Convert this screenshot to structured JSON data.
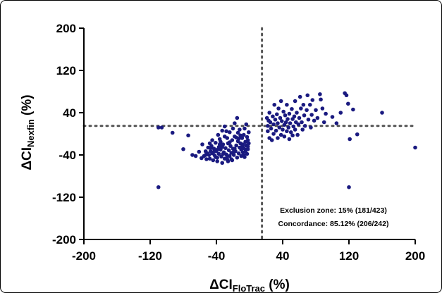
{
  "chart_data": {
    "type": "scatter",
    "xlabel": "ΔCI",
    "xlabel_sub": "FloTrac",
    "xlabel_unit": " (%)",
    "ylabel": "ΔCI",
    "ylabel_sub": "Nexfin",
    "ylabel_unit": " (%)",
    "xlim": [
      -200,
      200
    ],
    "ylim": [
      -200,
      200
    ],
    "xticks": [
      -200,
      -120,
      -40,
      40,
      120,
      200
    ],
    "yticks": [
      -200,
      -120,
      -40,
      40,
      120,
      200
    ],
    "reference_lines": {
      "x": 15,
      "y": 15,
      "style": "dotted"
    },
    "annotations": [
      "Exclusion zone: 15% (181/423)",
      "Concordance: 85.12% (206/242)"
    ],
    "point_color": "#1a1a80",
    "points": [
      [
        -110,
        12
      ],
      [
        -106,
        12
      ],
      [
        -110,
        -101
      ],
      [
        -93,
        2
      ],
      [
        -80,
        -29
      ],
      [
        -74,
        -3
      ],
      [
        -69,
        -40
      ],
      [
        -65,
        -42
      ],
      [
        -61,
        -34
      ],
      [
        -58,
        -46
      ],
      [
        -57,
        -20
      ],
      [
        -55,
        -42
      ],
      [
        -53,
        -33
      ],
      [
        -52,
        -48
      ],
      [
        -51,
        -37
      ],
      [
        -50,
        -26
      ],
      [
        -49,
        -40
      ],
      [
        -48,
        -47
      ],
      [
        -47,
        -33
      ],
      [
        -46,
        -23
      ],
      [
        -45,
        -37
      ],
      [
        -45,
        -12
      ],
      [
        -44,
        -50
      ],
      [
        -43,
        -28
      ],
      [
        -42,
        -41
      ],
      [
        -41,
        -17
      ],
      [
        -40,
        -33
      ],
      [
        -39,
        -45
      ],
      [
        -39,
        -52
      ],
      [
        -38,
        -2
      ],
      [
        -37,
        -25
      ],
      [
        -37,
        -38
      ],
      [
        -36,
        -10
      ],
      [
        -35,
        -30
      ],
      [
        -34,
        -43
      ],
      [
        -33,
        6
      ],
      [
        -33,
        -55
      ],
      [
        -32,
        -20
      ],
      [
        -31,
        -35
      ],
      [
        -30,
        -47
      ],
      [
        -30,
        14
      ],
      [
        -29,
        -27
      ],
      [
        -28,
        -39
      ],
      [
        -27,
        -8
      ],
      [
        -27,
        -48
      ],
      [
        -26,
        -18
      ],
      [
        -25,
        -31
      ],
      [
        -24,
        3
      ],
      [
        -24,
        -42
      ],
      [
        -23,
        -23
      ],
      [
        -22,
        -36
      ],
      [
        -21,
        -12
      ],
      [
        -21,
        -50
      ],
      [
        -20,
        -28
      ],
      [
        -19,
        -40
      ],
      [
        -18,
        20
      ],
      [
        -18,
        -5
      ],
      [
        -17,
        -33
      ],
      [
        -16,
        -22
      ],
      [
        -15,
        -45
      ],
      [
        -15,
        30
      ],
      [
        -14,
        -14
      ],
      [
        -13,
        -37
      ],
      [
        -12,
        8
      ],
      [
        -12,
        -26
      ],
      [
        -11,
        -18
      ],
      [
        -10,
        -42
      ],
      [
        -10,
        -30
      ],
      [
        -9,
        -8
      ],
      [
        -8,
        -35
      ],
      [
        -8,
        -20
      ],
      [
        -7,
        -2
      ],
      [
        -7,
        -27
      ],
      [
        -6,
        -44
      ],
      [
        -6,
        10
      ],
      [
        -5,
        -15
      ],
      [
        -5,
        -33
      ],
      [
        -4,
        -22
      ],
      [
        -4,
        18
      ],
      [
        -3,
        -38
      ],
      [
        -3,
        -6
      ],
      [
        -2,
        -12
      ],
      [
        -2,
        -29
      ],
      [
        -1,
        3
      ],
      [
        -1,
        -18
      ],
      [
        -36,
        -20
      ],
      [
        -42,
        -30
      ],
      [
        -48,
        -18
      ],
      [
        -53,
        -40
      ],
      [
        -30,
        -5
      ],
      [
        -26,
        -52
      ],
      [
        -35,
        -15
      ],
      [
        -28,
        5
      ],
      [
        -20,
        10
      ],
      [
        -16,
        -7
      ],
      [
        -22,
        -48
      ],
      [
        -44,
        -35
      ],
      [
        -33,
        -25
      ],
      [
        -11,
        -3
      ],
      [
        -14,
        2
      ],
      [
        -9,
        -24
      ],
      [
        -32,
        -38
      ],
      [
        -38,
        -29
      ],
      [
        -24,
        -16
      ],
      [
        -19,
        -34
      ],
      [
        -27,
        -42
      ],
      [
        -47,
        -27
      ],
      [
        -41,
        -44
      ],
      [
        -18,
        -28
      ],
      [
        -13,
        -9
      ],
      [
        -7,
        -40
      ],
      [
        -4,
        -30
      ],
      [
        -2,
        -24
      ],
      [
        21,
        30
      ],
      [
        22,
        15
      ],
      [
        22,
        5
      ],
      [
        23,
        25
      ],
      [
        24,
        -8
      ],
      [
        24,
        40
      ],
      [
        25,
        22
      ],
      [
        26,
        10
      ],
      [
        27,
        -12
      ],
      [
        28,
        33
      ],
      [
        29,
        18
      ],
      [
        29,
        0
      ],
      [
        30,
        55
      ],
      [
        31,
        27
      ],
      [
        32,
        6
      ],
      [
        33,
        37
      ],
      [
        34,
        20
      ],
      [
        34,
        -8
      ],
      [
        35,
        48
      ],
      [
        36,
        12
      ],
      [
        37,
        30
      ],
      [
        38,
        -2
      ],
      [
        38,
        62
      ],
      [
        39,
        24
      ],
      [
        40,
        8
      ],
      [
        41,
        42
      ],
      [
        42,
        17
      ],
      [
        42,
        -5
      ],
      [
        43,
        35
      ],
      [
        44,
        22
      ],
      [
        45,
        55
      ],
      [
        45,
        5
      ],
      [
        46,
        28
      ],
      [
        47,
        12
      ],
      [
        48,
        -10
      ],
      [
        48,
        38
      ],
      [
        49,
        20
      ],
      [
        50,
        3
      ],
      [
        51,
        47
      ],
      [
        52,
        28
      ],
      [
        52,
        -3
      ],
      [
        53,
        14
      ],
      [
        54,
        33
      ],
      [
        55,
        62
      ],
      [
        55,
        8
      ],
      [
        56,
        22
      ],
      [
        57,
        40
      ],
      [
        58,
        -2
      ],
      [
        59,
        18
      ],
      [
        60,
        30
      ],
      [
        61,
        70
      ],
      [
        62,
        48
      ],
      [
        63,
        22
      ],
      [
        64,
        8
      ],
      [
        65,
        55
      ],
      [
        66,
        35
      ],
      [
        67,
        15
      ],
      [
        69,
        45
      ],
      [
        70,
        73
      ],
      [
        71,
        27
      ],
      [
        73,
        55
      ],
      [
        74,
        12
      ],
      [
        75,
        36
      ],
      [
        76,
        64
      ],
      [
        78,
        25
      ],
      [
        80,
        45
      ],
      [
        82,
        30
      ],
      [
        85,
        75
      ],
      [
        86,
        65
      ],
      [
        88,
        48
      ],
      [
        90,
        22
      ],
      [
        92,
        38
      ],
      [
        100,
        32
      ],
      [
        105,
        20
      ],
      [
        110,
        40
      ],
      [
        115,
        77
      ],
      [
        117,
        73
      ],
      [
        119,
        57
      ],
      [
        121,
        -10
      ],
      [
        125,
        46
      ],
      [
        130,
        -1
      ],
      [
        160,
        40
      ],
      [
        200,
        -26
      ],
      [
        120,
        -101
      ]
    ]
  }
}
